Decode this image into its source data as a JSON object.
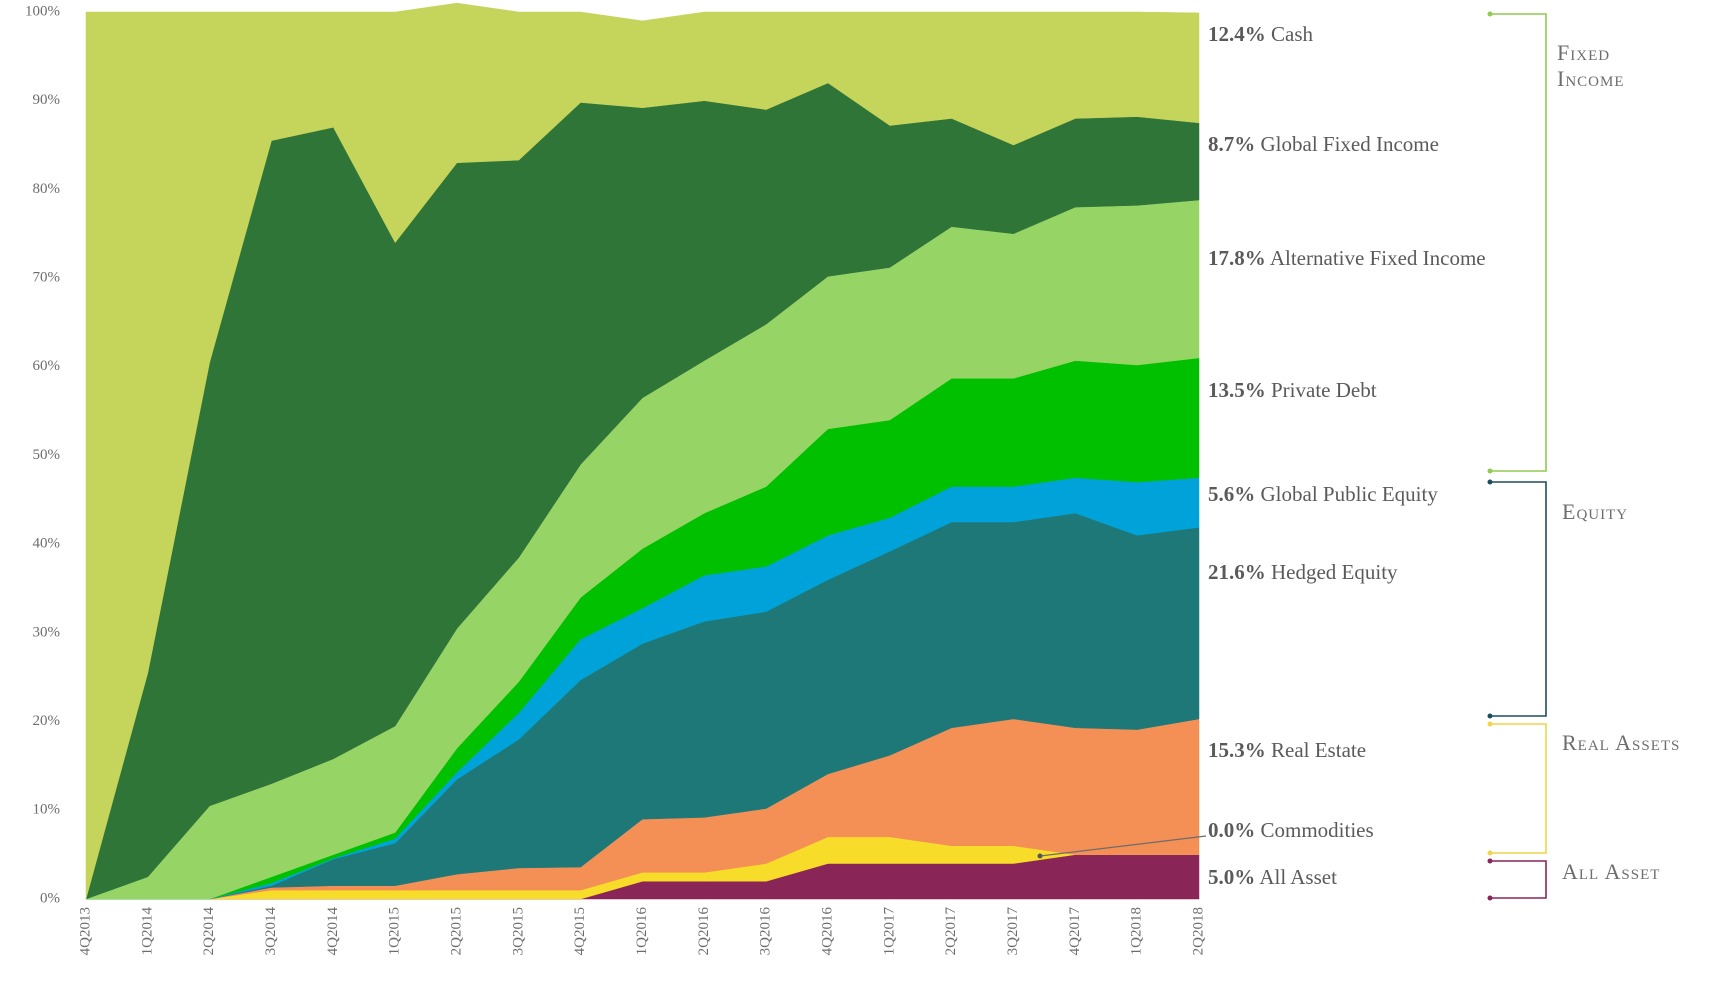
{
  "chart_data": {
    "type": "stacked-area",
    "categories": [
      "4Q2013",
      "1Q2014",
      "2Q2014",
      "3Q2014",
      "4Q2014",
      "1Q2015",
      "2Q2015",
      "3Q2015",
      "4Q2015",
      "1Q2016",
      "2Q2016",
      "3Q2016",
      "4Q2016",
      "1Q2017",
      "2Q2017",
      "3Q2017",
      "4Q2017",
      "1Q2018",
      "2Q2018"
    ],
    "series": [
      {
        "name": "All Asset",
        "color": "#8a2558",
        "end_label": "5.0%",
        "values": [
          0,
          0,
          0,
          0,
          0,
          0,
          0,
          0,
          0,
          2,
          2,
          2,
          4,
          4,
          4,
          4,
          5,
          5,
          5
        ]
      },
      {
        "name": "Commodities",
        "color": "#f7dc2a",
        "end_label": "0.0%",
        "values": [
          0,
          0,
          0,
          1,
          1,
          1,
          1,
          1,
          1,
          1,
          1,
          2,
          3,
          3,
          2,
          2,
          0,
          0,
          0
        ]
      },
      {
        "name": "Real Estate",
        "color": "#f48f55",
        "end_label": "15.3%",
        "values": [
          0,
          0,
          0,
          0.3,
          0.5,
          0.5,
          1.8,
          2.5,
          2.6,
          6,
          6.2,
          6.2,
          7.1,
          9.2,
          13.3,
          14.3,
          14.3,
          14.1,
          15.3
        ]
      },
      {
        "name": "Hedged Equity",
        "color": "#1f7878",
        "end_label": "21.6%",
        "values": [
          0,
          0,
          0,
          0.2,
          3,
          4.8,
          10.7,
          14.5,
          21.1,
          19.8,
          22.1,
          22.2,
          21.9,
          23,
          23.2,
          22.2,
          24.2,
          21.9,
          21.6
        ]
      },
      {
        "name": "Global Public Equity",
        "color": "#00a3d9",
        "end_label": "5.6%",
        "values": [
          0,
          0,
          0,
          0.3,
          0.1,
          0.5,
          0.8,
          3,
          4.6,
          4,
          5.2,
          5.1,
          5,
          3.8,
          4,
          4,
          4,
          6,
          5.6
        ]
      },
      {
        "name": "Private Debt",
        "color": "#00c000",
        "end_label": "13.5%",
        "values": [
          0,
          0,
          0,
          0.7,
          0.4,
          0.7,
          2.7,
          3.5,
          4.7,
          6.7,
          7,
          9,
          12,
          11,
          12.2,
          12.2,
          13.2,
          13.2,
          13.5
        ]
      },
      {
        "name": "Alternative Fixed Income",
        "color": "#97d466",
        "end_label": "17.8%",
        "values": [
          0,
          2.5,
          10.5,
          10.5,
          10.8,
          12,
          13.5,
          14,
          15,
          17,
          17.2,
          18.3,
          17.2,
          17.2,
          17.1,
          16.3,
          17.3,
          18,
          17.8
        ]
      },
      {
        "name": "Global Fixed Income",
        "color": "#2f7538",
        "end_label": "8.7%",
        "values": [
          0,
          23,
          50,
          72.5,
          71.2,
          54.5,
          52.5,
          44.8,
          40.8,
          32.7,
          29.3,
          24.2,
          21.8,
          16,
          12.2,
          10,
          10,
          10,
          8.7
        ]
      },
      {
        "name": "Cash",
        "color": "#c5d45b",
        "end_label": "12.4%",
        "values": [
          100,
          74.5,
          39.5,
          14.5,
          13,
          26,
          18,
          16.7,
          10.2,
          9.8,
          10,
          11,
          8,
          12.8,
          12,
          15,
          12,
          11.8,
          12.4
        ]
      }
    ],
    "groups": [
      {
        "name": "Fixed Income",
        "color": "#8fcc4f"
      },
      {
        "name": "Equity",
        "color": "#1d4e5e"
      },
      {
        "name": "Real Assets",
        "color": "#f2d44a"
      },
      {
        "name": "All Asset",
        "color": "#8a2558"
      }
    ],
    "ylim": [
      0,
      100
    ],
    "yticks": [
      {
        "value": 0,
        "label": "0%"
      },
      {
        "value": 10,
        "label": "10%"
      },
      {
        "value": 20,
        "label": "20%"
      },
      {
        "value": 30,
        "label": "30%"
      },
      {
        "value": 40,
        "label": "40%"
      },
      {
        "value": 50,
        "label": "50%"
      },
      {
        "value": 60,
        "label": "60%"
      },
      {
        "value": 70,
        "label": "70%"
      },
      {
        "value": 80,
        "label": "80%"
      },
      {
        "value": 90,
        "label": "90%"
      },
      {
        "value": 100,
        "label": "100%"
      }
    ],
    "grid": false
  }
}
